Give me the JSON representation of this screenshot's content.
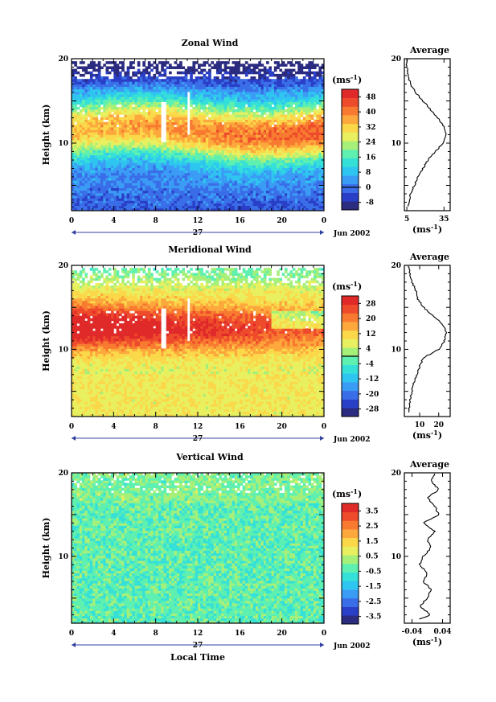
{
  "chart_data": [
    {
      "type": "heatmap",
      "title": "Zonal Wind",
      "ylabel": "Height (km)",
      "xlabel": "",
      "x_ticks": [
        "0",
        "4",
        "8",
        "12",
        "16",
        "20",
        "0"
      ],
      "y_ticks": [
        "20",
        "10"
      ],
      "xlim": [
        0,
        24
      ],
      "ylim": [
        2,
        20
      ],
      "date_day": "27",
      "date_month": "Jun 2002",
      "colorbar_unit": "(ms-1)",
      "colorbar_ticks": [
        "48",
        "40",
        "32",
        "24",
        "16",
        "8",
        "0",
        "-8"
      ],
      "colorbar_range": [
        -12,
        52
      ],
      "zero_line": 0,
      "profile": {
        "title": "Average",
        "xlabel": "(ms-1)",
        "x_ticks": [
          "5",
          "35"
        ],
        "xlim": [
          3,
          40
        ],
        "y_ticks": [
          "20",
          "10"
        ],
        "heights": [
          2.5,
          4,
          6,
          8,
          9,
          10,
          11,
          12,
          13,
          14,
          15,
          16,
          17,
          18,
          19,
          20
        ],
        "values": [
          6,
          8,
          14,
          22,
          28,
          34,
          37,
          35,
          30,
          24,
          18,
          12,
          8,
          6,
          5,
          5
        ]
      }
    },
    {
      "type": "heatmap",
      "title": "Meridional Wind",
      "ylabel": "Height (km)",
      "xlabel": "",
      "x_ticks": [
        "0",
        "4",
        "8",
        "12",
        "16",
        "20",
        "0"
      ],
      "y_ticks": [
        "20",
        "10"
      ],
      "xlim": [
        0,
        24
      ],
      "ylim": [
        2,
        20
      ],
      "date_day": "27",
      "date_month": "Jun 2002",
      "colorbar_unit": "(ms-1)",
      "colorbar_ticks": [
        "28",
        "20",
        "12",
        "4",
        "-4",
        "-12",
        "-20",
        "-28"
      ],
      "colorbar_range": [
        -32,
        32
      ],
      "zero_line": 0,
      "profile": {
        "title": "Average",
        "xlabel": "(ms-1)",
        "x_ticks": [
          "10",
          "20"
        ],
        "xlim": [
          2,
          26
        ],
        "y_ticks": [
          "20",
          "10"
        ],
        "heights": [
          2.5,
          4,
          6,
          8,
          9,
          10,
          11,
          12,
          13,
          14,
          15,
          16,
          17,
          18,
          19,
          20
        ],
        "values": [
          4,
          5,
          7,
          10,
          12,
          20,
          23,
          24,
          22,
          17,
          12,
          9,
          8,
          6,
          5,
          4
        ]
      }
    },
    {
      "type": "heatmap",
      "title": "Vertical Wind",
      "ylabel": "Height (km)",
      "xlabel": "Local Time",
      "x_ticks": [
        "0",
        "4",
        "8",
        "12",
        "16",
        "20",
        "0"
      ],
      "y_ticks": [
        "20",
        "10"
      ],
      "xlim": [
        0,
        24
      ],
      "ylim": [
        2,
        20
      ],
      "date_day": "27",
      "date_month": "Jun 2002",
      "colorbar_unit": "(ms-1)",
      "colorbar_ticks": [
        "3.5",
        "2.5",
        "1.5",
        "0.5",
        "-0.5",
        "-1.5",
        "-2.5",
        "-3.5"
      ],
      "colorbar_range": [
        -4,
        4
      ],
      "zero_line": null,
      "profile": {
        "title": "Average",
        "xlabel": "(ms-1)",
        "x_ticks": [
          "-0.04",
          "0.04"
        ],
        "xlim": [
          -0.06,
          0.06
        ],
        "y_ticks": [
          "20",
          "10"
        ],
        "heights": [
          2.5,
          3,
          4,
          5,
          6,
          7,
          8,
          9,
          10,
          11,
          12,
          13,
          14,
          15,
          16,
          17,
          18,
          19,
          20
        ],
        "values": [
          -0.02,
          0.01,
          -0.02,
          0.0,
          0.01,
          -0.01,
          0.0,
          -0.02,
          -0.01,
          0.01,
          0.0,
          0.02,
          -0.01,
          0.03,
          0.02,
          0.0,
          0.03,
          0.01,
          0.02
        ]
      }
    }
  ]
}
